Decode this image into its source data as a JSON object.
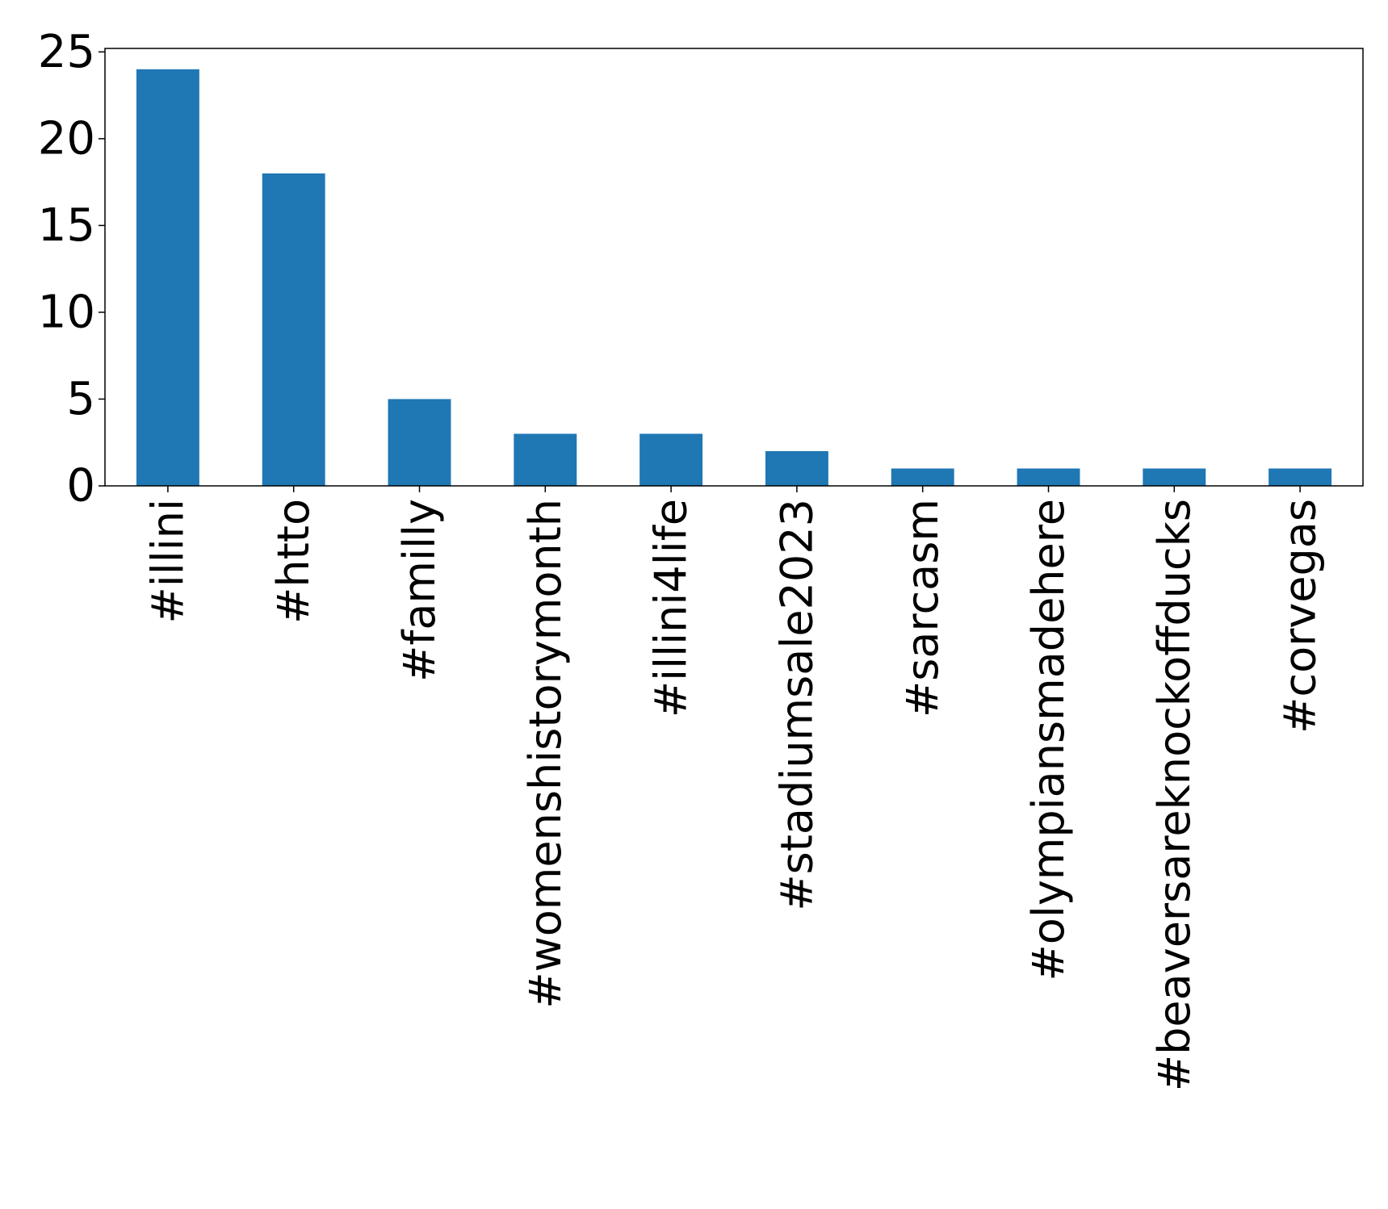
{
  "chart_data": {
    "type": "bar",
    "title": "",
    "xlabel": "",
    "ylabel": "",
    "categories": [
      "#illini",
      "#htto",
      "#familly",
      "#womenshistorymonth",
      "#illini4life",
      "#stadiumsale2023",
      "#sarcasm",
      "#olympiansmadehere",
      "#beaversareknockoffducks",
      "#corvegas"
    ],
    "values": [
      24,
      18,
      5,
      3,
      3,
      2,
      1,
      1,
      1,
      1
    ],
    "ylim": [
      0,
      25.2
    ],
    "yticks": [
      0,
      5,
      10,
      15,
      20,
      25
    ],
    "grid": false,
    "legend": "none",
    "bar_color": "#1f77b4"
  }
}
